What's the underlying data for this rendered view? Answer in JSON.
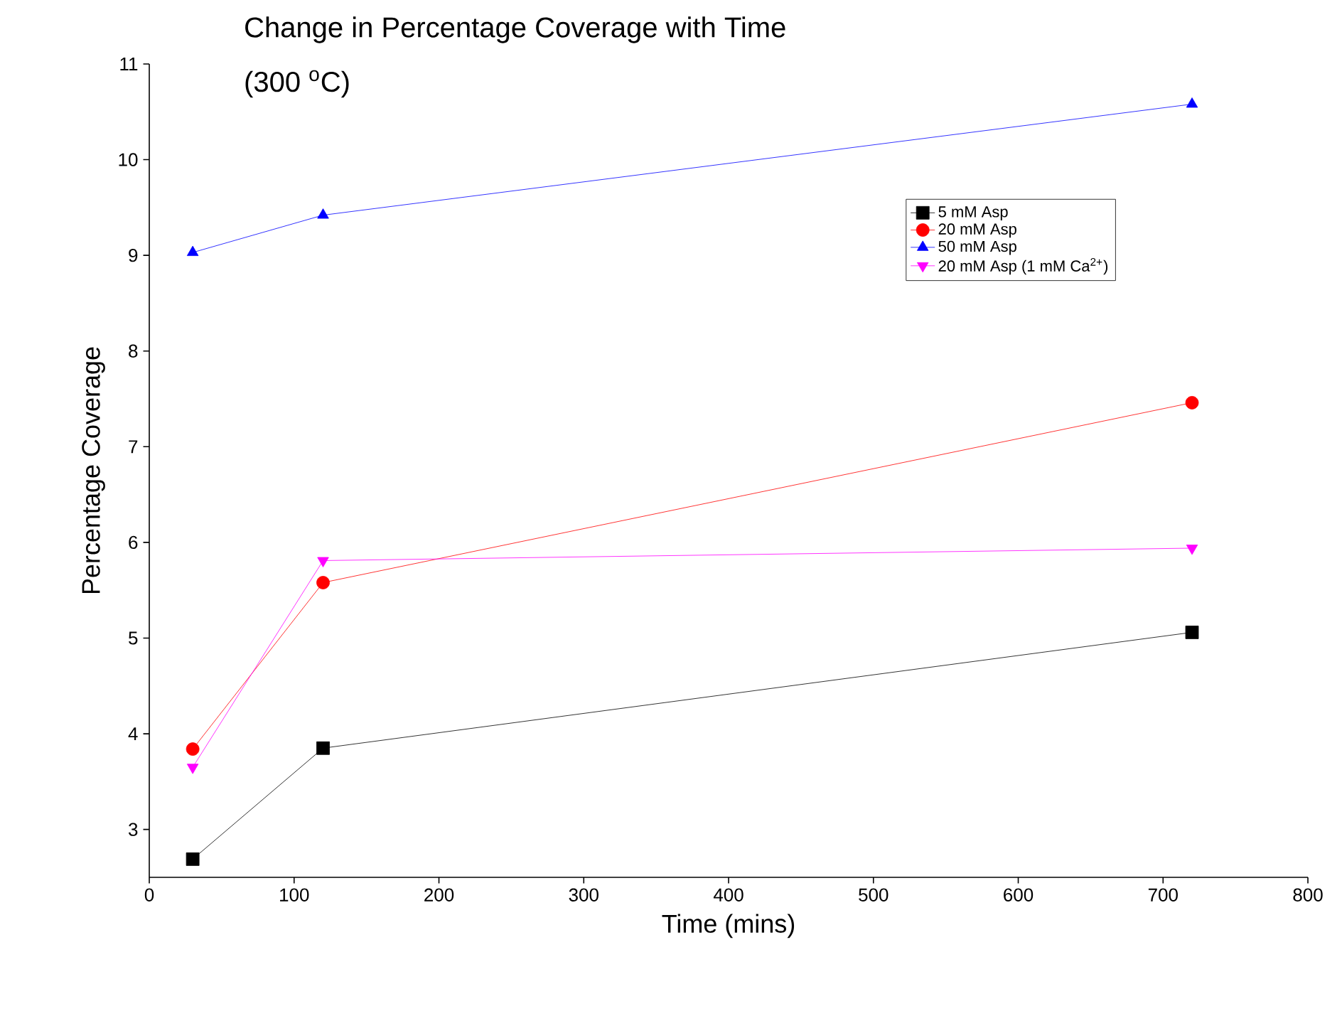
{
  "chart_data": {
    "type": "line",
    "title": "Change in Percentage Coverage with Time",
    "subtitle": "(300 $^{o}$C)",
    "xlabel": "Time (mins)",
    "ylabel": "Percentage Coverage",
    "x": [
      30,
      120,
      720
    ],
    "series": [
      {
        "name": "5 mM Asp",
        "color": "#000000",
        "marker": "square",
        "values": [
          2.69,
          3.85,
          5.06
        ]
      },
      {
        "name": "20 mM Asp",
        "color": "#ff0000",
        "marker": "circle",
        "values": [
          3.84,
          5.58,
          7.46
        ]
      },
      {
        "name": "50 mM Asp",
        "color": "#0000ff",
        "marker": "triangle",
        "values": [
          9.03,
          9.42,
          10.58
        ]
      },
      {
        "name": "20 mM Asp (1 mM Ca$^{2+}$)",
        "color": "#ff00ff",
        "marker": "triangle-down",
        "values": [
          3.65,
          5.81,
          5.94
        ]
      }
    ],
    "xlim": [
      0,
      800
    ],
    "xticks": [
      0,
      100,
      200,
      300,
      400,
      500,
      600,
      700,
      800
    ],
    "ylim": [
      2.5,
      11
    ],
    "yticks": [
      3,
      4,
      5,
      6,
      7,
      8,
      9,
      10,
      11
    ],
    "grid": false,
    "legend": "top right",
    "line_style": "solid"
  }
}
